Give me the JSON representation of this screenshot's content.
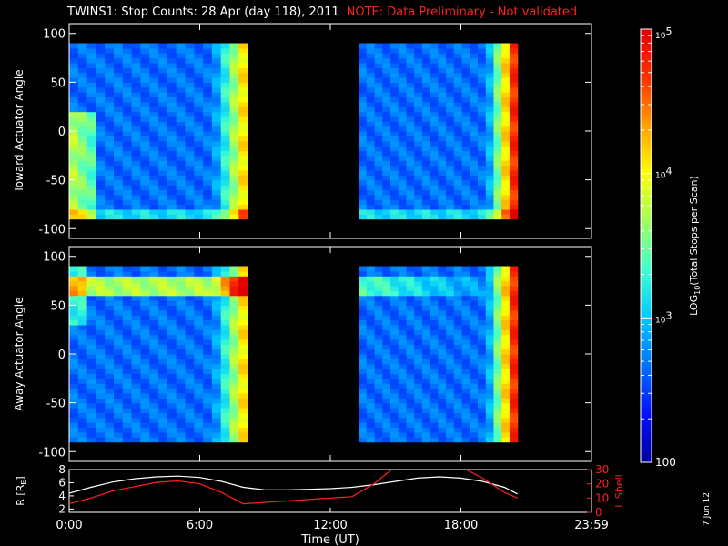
{
  "title": {
    "main": "TWINS1: Stop Counts: 28 Apr (day 118), 2011",
    "note": "NOTE: Data Preliminary - Not validated",
    "note_color": "#ff2020"
  },
  "stamp": "7 Jun 12",
  "chart_data": [
    {
      "type": "heatmap",
      "ylabel": "Toward Actuator Angle",
      "ylim": [
        -110,
        110
      ],
      "y_ticks": [
        "100",
        "50",
        "0",
        "-50",
        "-100"
      ],
      "y_tick_values": [
        100,
        50,
        0,
        -50,
        -100
      ],
      "data_y_range": [
        -90,
        90
      ],
      "time_axis_hours": [
        0,
        24
      ],
      "data_blocks_hours": [
        [
          0,
          8.2
        ],
        [
          13.3,
          20.6
        ]
      ],
      "feature": "high counts along low angles early, bright band near 8 UT and near 19-20.5 UT"
    },
    {
      "type": "heatmap",
      "ylabel": "Away Actuator Angle",
      "ylim": [
        -110,
        110
      ],
      "y_ticks": [
        "100",
        "50",
        "0",
        "-50",
        "-100"
      ],
      "y_tick_values": [
        100,
        50,
        0,
        -50,
        -100
      ],
      "data_y_range": [
        -90,
        90
      ],
      "time_axis_hours": [
        0,
        24
      ],
      "data_blocks_hours": [
        [
          0,
          8.2
        ],
        [
          13.3,
          20.6
        ]
      ],
      "feature": "bright band near +70 deg, edges near 8 UT and 19-20.5 UT"
    },
    {
      "type": "line",
      "xlabel": "Time (UT)",
      "x_ticks": [
        "0:00",
        "6:00",
        "12:00",
        "18:00",
        "23:59"
      ],
      "x_tick_values": [
        0,
        6,
        12,
        18,
        24
      ],
      "ylabel": "R [R",
      "ylabel_subscript": "E",
      "ylabel_close": "]",
      "ylim": [
        1.5,
        8
      ],
      "y_ticks": [
        "8",
        "6",
        "4",
        "2"
      ],
      "y_tick_values": [
        8,
        6,
        4,
        2
      ],
      "y2label": "L Shell",
      "y2lim": [
        0,
        30
      ],
      "y2_ticks": [
        "30",
        "20",
        "10",
        "0"
      ],
      "y2_tick_values": [
        30,
        20,
        10,
        0
      ],
      "y2_color": "#ff2020",
      "series": [
        {
          "axis": "left",
          "color": "#ffffff",
          "x": [
            0,
            1,
            2,
            3,
            4,
            5,
            6,
            7,
            8,
            9,
            10,
            11,
            12,
            13,
            14,
            15,
            16,
            17,
            18,
            19,
            20,
            20.6
          ],
          "y": [
            4.4,
            5.3,
            6.1,
            6.6,
            6.9,
            7.0,
            6.8,
            6.2,
            5.3,
            4.9,
            4.9,
            5.0,
            5.1,
            5.3,
            5.7,
            6.2,
            6.7,
            6.9,
            6.7,
            6.2,
            5.3,
            4.3
          ]
        },
        {
          "axis": "right",
          "color": "#ff2020",
          "x": [
            0,
            1,
            2,
            3,
            4,
            5,
            6,
            7,
            8,
            9,
            10,
            11,
            12,
            13,
            14,
            14.9
          ],
          "y": [
            6,
            10,
            15,
            18,
            21,
            22,
            20,
            14,
            6,
            7,
            8,
            9,
            10,
            11,
            20,
            31
          ]
        },
        {
          "axis": "right",
          "color": "#ff2020",
          "x": [
            18.1,
            19,
            20,
            20.6
          ],
          "y": [
            31,
            24,
            14,
            10
          ]
        }
      ]
    }
  ],
  "colorbar": {
    "label_pre": "LOG",
    "label_sub": "10",
    "label_post": "(Total Stops per Scan)",
    "ticks": [
      {
        "text": "10",
        "sup": "5",
        "value": 100000
      },
      {
        "text": "10",
        "sup": "4",
        "value": 10000
      },
      {
        "text": "10",
        "sup": "3",
        "value": 1000
      },
      {
        "text": "100",
        "sup": "",
        "value": 100
      }
    ],
    "range": [
      100,
      100000
    ],
    "colors": [
      "#0000a0",
      "#0010ff",
      "#0070ff",
      "#00c8ff",
      "#40ffd0",
      "#a0ff60",
      "#ffff00",
      "#ffa000",
      "#ff3000",
      "#e00000"
    ]
  }
}
